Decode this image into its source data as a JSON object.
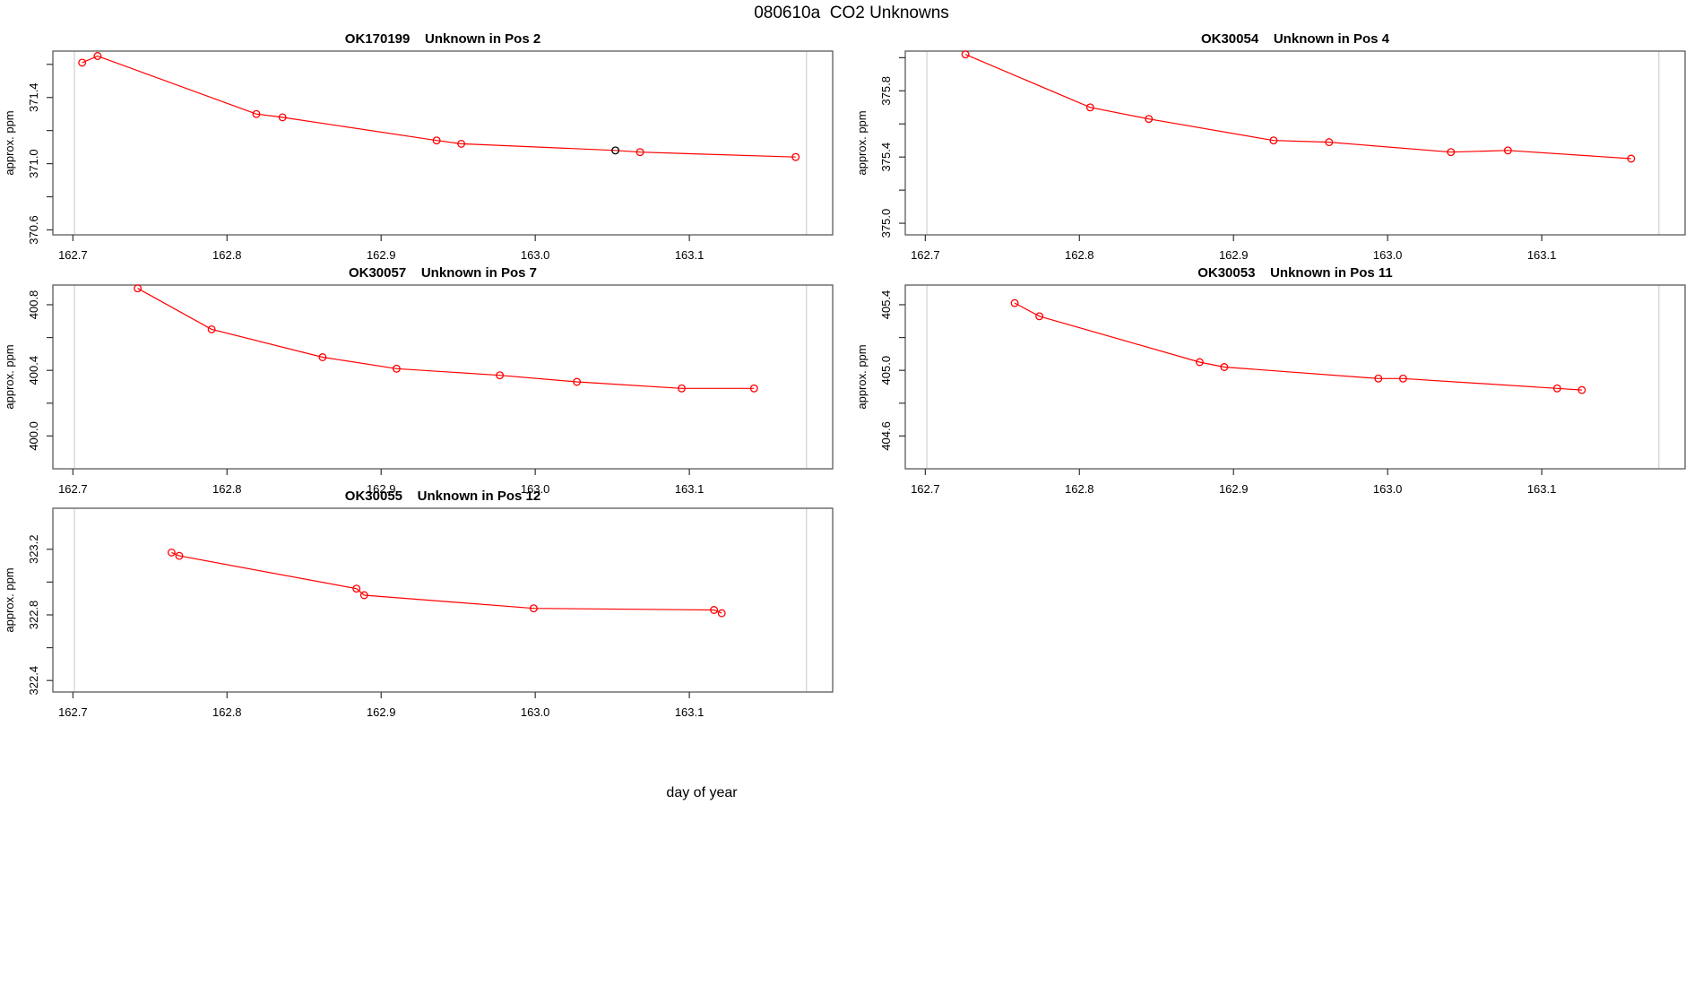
{
  "page": {
    "title": "080610a  CO2 Unknowns",
    "x_axis_label": "day of year"
  },
  "chart_data": {
    "type": "line",
    "layout": "5 panels, 2 columns x 3 rows, last cell empty",
    "legend": "none",
    "grid": "off",
    "shared": {
      "xlabel": "day of year",
      "ylabel": "approx. ppm",
      "xlim": [
        162.687,
        163.193
      ],
      "xticks": [
        162.7,
        162.8,
        162.9,
        163.0,
        163.1
      ],
      "xtick_labels": [
        "162.7",
        "162.8",
        "162.9",
        "163.0",
        "163.1"
      ],
      "vlines": [
        162.701,
        163.176
      ],
      "line_color": "#ff0000",
      "special_point_color": "#000000",
      "vline_color": "#cfcfcf",
      "box_color": "#5a5a5a"
    },
    "panels": [
      {
        "sample_id": "OK170199",
        "title_suffix": "Unknown in Pos 2",
        "ylim": [
          370.57,
          371.68
        ],
        "yticks": [
          370.6,
          370.8,
          371.0,
          371.2,
          371.4,
          371.6
        ],
        "ytick_labels": [
          "370.6",
          "",
          "371.0",
          "",
          "371.4",
          ""
        ],
        "x": [
          162.706,
          162.716,
          162.819,
          162.836,
          162.936,
          162.952,
          163.052,
          163.068,
          163.169
        ],
        "y": [
          371.61,
          371.65,
          371.3,
          371.28,
          371.14,
          371.12,
          371.08,
          371.07,
          371.04
        ],
        "black_point_index": 6
      },
      {
        "sample_id": "OK30054",
        "title_suffix": "Unknown in Pos 4",
        "ylim": [
          374.93,
          376.04
        ],
        "yticks": [
          375.0,
          375.2,
          375.4,
          375.6,
          375.8,
          376.0
        ],
        "ytick_labels": [
          "375.0",
          "",
          "375.4",
          "",
          "375.8",
          ""
        ],
        "x": [
          162.726,
          162.807,
          162.845,
          162.926,
          162.962,
          163.041,
          163.078,
          163.158
        ],
        "y": [
          376.02,
          375.7,
          375.63,
          375.5,
          375.49,
          375.43,
          375.44,
          375.39
        ],
        "black_point_index": null
      },
      {
        "sample_id": "OK30057",
        "title_suffix": "Unknown in Pos 7",
        "ylim": [
          399.8,
          400.92
        ],
        "yticks": [
          400.0,
          400.2,
          400.4,
          400.6,
          400.8
        ],
        "ytick_labels": [
          "400.0",
          "",
          "400.4",
          "",
          "400.8"
        ],
        "x": [
          162.742,
          162.79,
          162.862,
          162.91,
          162.977,
          163.027,
          163.095,
          163.142
        ],
        "y": [
          400.9,
          400.65,
          400.48,
          400.41,
          400.37,
          400.33,
          400.29,
          400.29
        ],
        "black_point_index": null
      },
      {
        "sample_id": "OK30053",
        "title_suffix": "Unknown in Pos 11",
        "ylim": [
          404.4,
          405.52
        ],
        "yticks": [
          404.6,
          404.8,
          405.0,
          405.2,
          405.4
        ],
        "ytick_labels": [
          "404.6",
          "",
          "405.0",
          "",
          "405.4"
        ],
        "x": [
          162.758,
          162.774,
          162.878,
          162.894,
          162.994,
          163.01,
          163.11,
          163.126
        ],
        "y": [
          405.41,
          405.33,
          405.05,
          405.02,
          404.95,
          404.95,
          404.89,
          404.88
        ],
        "black_point_index": null
      },
      {
        "sample_id": "OK30055",
        "title_suffix": "Unknown in Pos 12",
        "ylim": [
          322.33,
          323.45
        ],
        "yticks": [
          322.4,
          322.6,
          322.8,
          323.0,
          323.2
        ],
        "ytick_labels": [
          "322.4",
          "",
          "322.8",
          "",
          "323.2"
        ],
        "x": [
          162.764,
          162.769,
          162.884,
          162.889,
          162.999,
          163.116,
          163.121
        ],
        "y": [
          323.18,
          323.16,
          322.96,
          322.92,
          322.84,
          322.83,
          322.81
        ],
        "black_point_index": null
      }
    ]
  }
}
